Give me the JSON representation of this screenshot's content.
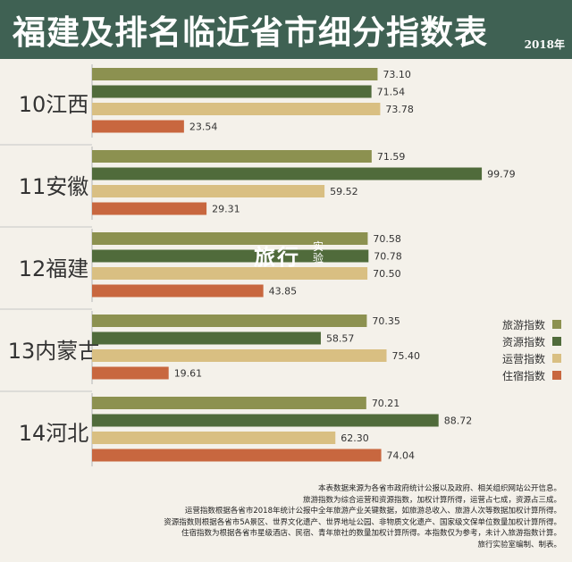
{
  "header": {
    "title": "福建及排名临近省市细分指数表",
    "year": "2018年"
  },
  "watermark": {
    "main": "旅行",
    "sub": "实验"
  },
  "chart_data": {
    "type": "bar",
    "orientation": "horizontal",
    "title": "福建及排名临近省市细分指数表",
    "categories": [
      "10江西",
      "11安徽",
      "12福建",
      "13内蒙古",
      "14河北"
    ],
    "series": [
      {
        "name": "旅游指数",
        "color": "#8c9150",
        "values": [
          73.1,
          71.59,
          70.58,
          70.35,
          70.21
        ]
      },
      {
        "name": "资源指数",
        "color": "#506b3b",
        "values": [
          71.54,
          99.79,
          70.78,
          58.57,
          88.72
        ]
      },
      {
        "name": "运营指数",
        "color": "#d9bf82",
        "values": [
          73.78,
          59.52,
          70.5,
          75.4,
          62.3
        ]
      },
      {
        "name": "住宿指数",
        "color": "#c8673f",
        "values": [
          23.54,
          29.31,
          43.85,
          19.61,
          74.04
        ]
      }
    ],
    "value_labels": [
      [
        "73.10",
        "71.54",
        "73.78",
        "23.54"
      ],
      [
        "71.59",
        "99.79",
        "59.52",
        "29.31"
      ],
      [
        "70.58",
        "70.78",
        "70.50",
        "43.85"
      ],
      [
        "70.35",
        "58.57",
        "75.40",
        "19.61"
      ],
      [
        "70.21",
        "88.72",
        "62.30",
        "74.04"
      ]
    ],
    "xlim": [
      0,
      100
    ],
    "grid": false,
    "legend_position": "right"
  },
  "notes": [
    "本表数据来源为各省市政府统计公报以及政府、相关组织网站公开信息。",
    "旅游指数为综合运营和资源指数，加权计算所得，运营占七成，资源占三成。",
    "运营指数根据各省市2018年统计公报中全年旅游产业关键数据，如旅游总收入、旅游人次等数据加权计算所得。",
    "资源指数则根据各省市5A景区、世界文化遗产、世界地址公园、非物质文化遗产、国家级文保单位数量加权计算所得。",
    "住宿指数为根据各省市星级酒店、民宿、青年旅社的数量加权计算所得。本指数仅为参考，未计入旅游指数计算。",
    "旅行实验室编制、制表。"
  ]
}
